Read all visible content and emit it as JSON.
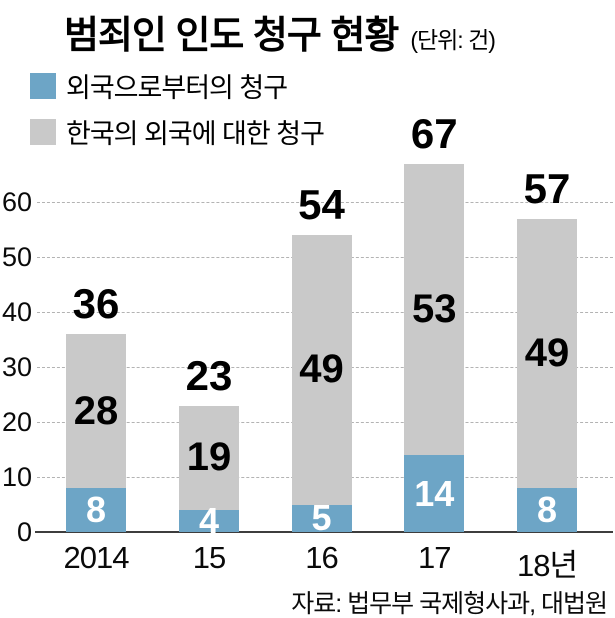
{
  "title": {
    "text": "범죄인 인도 청구 현황",
    "unit": "(단위: 건)"
  },
  "legend": [
    {
      "label": "외국으로부터의 청구",
      "color": "#6da5c6"
    },
    {
      "label": "한국의 외국에 대한 청구",
      "color": "#c9c9c9"
    }
  ],
  "source": "자료: 법무부 국제형사과, 대법원",
  "chart_data": {
    "type": "bar",
    "stacked": true,
    "title": "범죄인 인도 청구 현황",
    "unit": "건",
    "categories": [
      "2014",
      "15",
      "16",
      "17",
      "18년"
    ],
    "series": [
      {
        "name": "외국으로부터의 청구",
        "color": "#6da5c6",
        "values": [
          8,
          4,
          5,
          14,
          8
        ]
      },
      {
        "name": "한국의 외국에 대한 청구",
        "color": "#c9c9c9",
        "values": [
          28,
          19,
          49,
          53,
          49
        ]
      }
    ],
    "totals": [
      36,
      23,
      54,
      67,
      57
    ],
    "ylim": [
      0,
      67
    ],
    "yticks": [
      0,
      10,
      20,
      30,
      40,
      50,
      60
    ],
    "grid": "dashed-horizontal",
    "legend_position": "top-left",
    "source": "자료: 법무부 국제형사과, 대법원"
  }
}
